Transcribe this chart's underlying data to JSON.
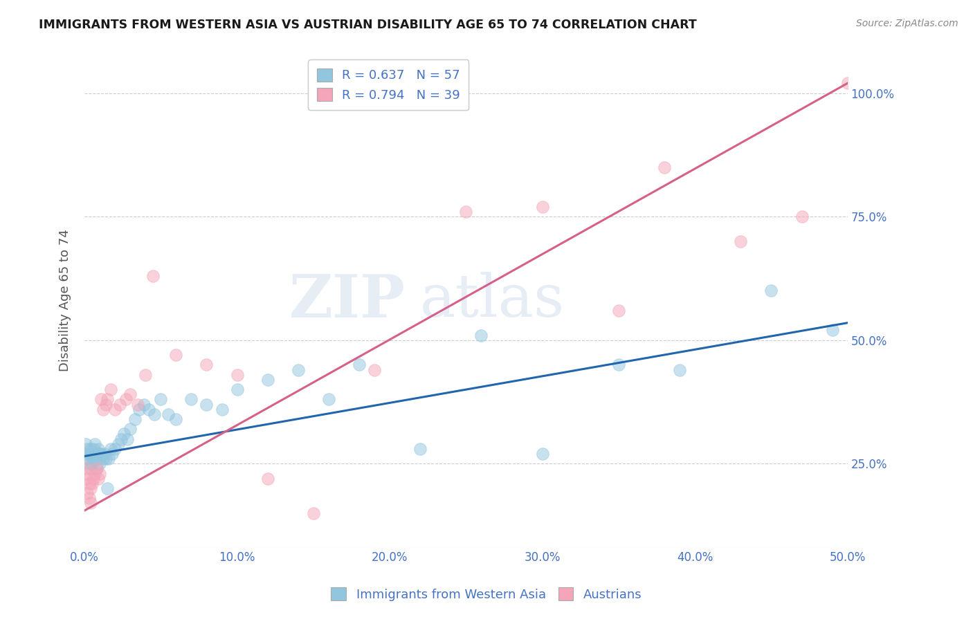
{
  "title": "IMMIGRANTS FROM WESTERN ASIA VS AUSTRIAN DISABILITY AGE 65 TO 74 CORRELATION CHART",
  "source": "Source: ZipAtlas.com",
  "ylabel": "Disability Age 65 to 74",
  "legend_label_1": "Immigrants from Western Asia",
  "legend_label_2": "Austrians",
  "R1": 0.637,
  "N1": 57,
  "R2": 0.794,
  "N2": 39,
  "xlim": [
    0.0,
    0.5
  ],
  "ylim": [
    0.08,
    1.08
  ],
  "x_ticks": [
    0.0,
    0.1,
    0.2,
    0.3,
    0.4,
    0.5
  ],
  "x_tick_labels": [
    "0.0%",
    "10.0%",
    "20.0%",
    "30.0%",
    "40.0%",
    "50.0%"
  ],
  "y_ticks": [
    0.25,
    0.5,
    0.75,
    1.0
  ],
  "y_tick_labels": [
    "25.0%",
    "50.0%",
    "75.0%",
    "100.0%"
  ],
  "color_blue": "#92C5DE",
  "color_pink": "#F4A5B8",
  "color_blue_line": "#2166AC",
  "color_pink_line": "#D6608A",
  "color_axis_labels": "#4472C4",
  "watermark_zip": "ZIP",
  "watermark_atlas": "atlas",
  "blue_scatter_x": [
    0.001,
    0.001,
    0.002,
    0.002,
    0.003,
    0.003,
    0.004,
    0.004,
    0.005,
    0.005,
    0.006,
    0.006,
    0.007,
    0.007,
    0.008,
    0.008,
    0.009,
    0.009,
    0.01,
    0.01,
    0.011,
    0.012,
    0.013,
    0.014,
    0.015,
    0.016,
    0.017,
    0.018,
    0.02,
    0.022,
    0.024,
    0.026,
    0.028,
    0.03,
    0.033,
    0.036,
    0.039,
    0.042,
    0.046,
    0.05,
    0.055,
    0.06,
    0.07,
    0.08,
    0.09,
    0.1,
    0.12,
    0.14,
    0.16,
    0.18,
    0.22,
    0.26,
    0.3,
    0.35,
    0.39,
    0.45,
    0.49
  ],
  "blue_scatter_y": [
    0.27,
    0.29,
    0.26,
    0.28,
    0.25,
    0.27,
    0.24,
    0.28,
    0.25,
    0.27,
    0.28,
    0.26,
    0.27,
    0.29,
    0.24,
    0.26,
    0.27,
    0.28,
    0.25,
    0.27,
    0.27,
    0.26,
    0.27,
    0.26,
    0.2,
    0.26,
    0.28,
    0.27,
    0.28,
    0.29,
    0.3,
    0.31,
    0.3,
    0.32,
    0.34,
    0.36,
    0.37,
    0.36,
    0.35,
    0.38,
    0.35,
    0.34,
    0.38,
    0.37,
    0.36,
    0.4,
    0.42,
    0.44,
    0.38,
    0.45,
    0.28,
    0.51,
    0.27,
    0.45,
    0.44,
    0.6,
    0.52
  ],
  "pink_scatter_x": [
    0.001,
    0.001,
    0.002,
    0.002,
    0.003,
    0.003,
    0.004,
    0.004,
    0.005,
    0.006,
    0.007,
    0.008,
    0.009,
    0.01,
    0.011,
    0.012,
    0.014,
    0.015,
    0.017,
    0.02,
    0.023,
    0.027,
    0.03,
    0.035,
    0.04,
    0.045,
    0.06,
    0.08,
    0.1,
    0.12,
    0.15,
    0.19,
    0.25,
    0.3,
    0.35,
    0.38,
    0.43,
    0.47,
    0.5
  ],
  "pink_scatter_y": [
    0.24,
    0.22,
    0.19,
    0.23,
    0.18,
    0.21,
    0.2,
    0.17,
    0.21,
    0.22,
    0.23,
    0.24,
    0.22,
    0.23,
    0.38,
    0.36,
    0.37,
    0.38,
    0.4,
    0.36,
    0.37,
    0.38,
    0.39,
    0.37,
    0.43,
    0.63,
    0.47,
    0.45,
    0.43,
    0.22,
    0.15,
    0.44,
    0.76,
    0.77,
    0.56,
    0.85,
    0.7,
    0.75,
    1.02
  ],
  "blue_line_x": [
    0.0,
    0.5
  ],
  "blue_line_y": [
    0.265,
    0.535
  ],
  "pink_line_x": [
    0.0,
    0.5
  ],
  "pink_line_y": [
    0.155,
    1.02
  ]
}
